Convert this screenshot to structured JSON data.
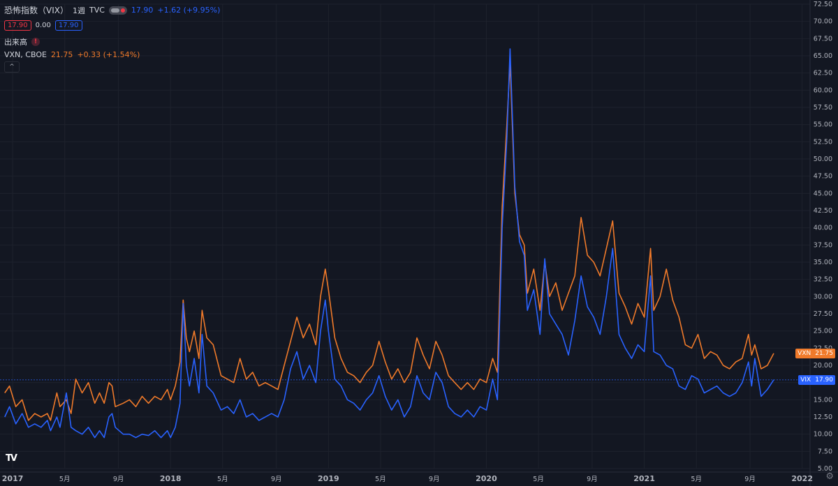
{
  "header": {
    "title": "恐怖指数（VIX）",
    "interval": "1週",
    "source": "TVC",
    "last": "17.90",
    "change": "+1.62 (+9.95%)",
    "bid": "17.90",
    "spread": "0.00",
    "ask": "17.90"
  },
  "volume_label": "出来高",
  "alert_glyph": "!",
  "collapse_glyph": "^",
  "logo": "TV",
  "gear_glyph": "⚙",
  "vxn": {
    "label": "VXN, CBOE",
    "value": "21.75",
    "change": "+0.33 (+1.54%)"
  },
  "price_tags": {
    "vxn_name": "VXN",
    "vxn_value": "21.75",
    "vix_name": "VIX",
    "vix_value": "17.90"
  },
  "colors": {
    "vix": "#2962ff",
    "vxn": "#f07a2a",
    "background": "#131722",
    "grid": "#1e222d",
    "axis_text": "#b2b5be",
    "red": "#f23645"
  },
  "chart_data": {
    "type": "line",
    "x_range": [
      2016.92,
      2022.05
    ],
    "ylim": [
      5.0,
      72.5
    ],
    "y_ticks": [
      "5.00",
      "7.50",
      "10.00",
      "12.50",
      "15.00",
      "17.50",
      "20.00",
      "22.50",
      "25.00",
      "27.50",
      "30.00",
      "32.50",
      "35.00",
      "37.50",
      "40.00",
      "42.50",
      "45.00",
      "47.50",
      "50.00",
      "52.50",
      "55.00",
      "57.50",
      "60.00",
      "62.50",
      "65.00",
      "67.50",
      "70.00",
      "72.50"
    ],
    "x_ticks": [
      {
        "label": "2017",
        "x": 2017.0
      },
      {
        "label": "5月",
        "x": 2017.33
      },
      {
        "label": "9月",
        "x": 2017.67
      },
      {
        "label": "2018",
        "x": 2018.0
      },
      {
        "label": "5月",
        "x": 2018.33
      },
      {
        "label": "9月",
        "x": 2018.67
      },
      {
        "label": "2019",
        "x": 2019.0
      },
      {
        "label": "5月",
        "x": 2019.33
      },
      {
        "label": "9月",
        "x": 2019.67
      },
      {
        "label": "2020",
        "x": 2020.0
      },
      {
        "label": "5月",
        "x": 2020.33
      },
      {
        "label": "9月",
        "x": 2020.67
      },
      {
        "label": "2021",
        "x": 2021.0
      },
      {
        "label": "5月",
        "x": 2021.33
      },
      {
        "label": "9月",
        "x": 2021.67
      },
      {
        "label": "2022",
        "x": 2022.0
      }
    ],
    "grid": true,
    "reference_line": 17.9,
    "series": [
      {
        "name": "VIX",
        "points": [
          [
            2016.95,
            12.5
          ],
          [
            2016.98,
            14.0
          ],
          [
            2017.02,
            11.5
          ],
          [
            2017.06,
            13.0
          ],
          [
            2017.1,
            11.0
          ],
          [
            2017.14,
            11.5
          ],
          [
            2017.18,
            11.0
          ],
          [
            2017.22,
            12.0
          ],
          [
            2017.24,
            10.5
          ],
          [
            2017.28,
            12.5
          ],
          [
            2017.3,
            11.0
          ],
          [
            2017.34,
            16.0
          ],
          [
            2017.37,
            11.0
          ],
          [
            2017.4,
            10.5
          ],
          [
            2017.44,
            10.0
          ],
          [
            2017.48,
            11.0
          ],
          [
            2017.52,
            9.5
          ],
          [
            2017.55,
            10.5
          ],
          [
            2017.58,
            9.5
          ],
          [
            2017.61,
            12.5
          ],
          [
            2017.63,
            13.0
          ],
          [
            2017.65,
            11.0
          ],
          [
            2017.7,
            10.0
          ],
          [
            2017.74,
            10.0
          ],
          [
            2017.78,
            9.5
          ],
          [
            2017.82,
            10.0
          ],
          [
            2017.86,
            9.8
          ],
          [
            2017.9,
            10.5
          ],
          [
            2017.94,
            9.5
          ],
          [
            2017.98,
            10.5
          ],
          [
            2018.0,
            9.5
          ],
          [
            2018.03,
            11.0
          ],
          [
            2018.06,
            14.5
          ],
          [
            2018.08,
            29.0
          ],
          [
            2018.1,
            20.0
          ],
          [
            2018.12,
            17.0
          ],
          [
            2018.15,
            21.0
          ],
          [
            2018.18,
            16.0
          ],
          [
            2018.2,
            24.5
          ],
          [
            2018.23,
            17.0
          ],
          [
            2018.27,
            16.0
          ],
          [
            2018.32,
            13.5
          ],
          [
            2018.36,
            14.0
          ],
          [
            2018.4,
            13.0
          ],
          [
            2018.44,
            15.0
          ],
          [
            2018.48,
            12.5
          ],
          [
            2018.52,
            13.0
          ],
          [
            2018.56,
            12.0
          ],
          [
            2018.6,
            12.5
          ],
          [
            2018.64,
            13.0
          ],
          [
            2018.68,
            12.5
          ],
          [
            2018.72,
            15.0
          ],
          [
            2018.76,
            19.5
          ],
          [
            2018.8,
            22.0
          ],
          [
            2018.84,
            18.0
          ],
          [
            2018.88,
            20.0
          ],
          [
            2018.92,
            17.5
          ],
          [
            2018.95,
            25.0
          ],
          [
            2018.98,
            29.5
          ],
          [
            2019.0,
            25.0
          ],
          [
            2019.04,
            18.0
          ],
          [
            2019.08,
            17.0
          ],
          [
            2019.12,
            15.0
          ],
          [
            2019.16,
            14.5
          ],
          [
            2019.2,
            13.5
          ],
          [
            2019.24,
            15.0
          ],
          [
            2019.28,
            16.0
          ],
          [
            2019.32,
            18.5
          ],
          [
            2019.36,
            15.5
          ],
          [
            2019.4,
            13.5
          ],
          [
            2019.44,
            15.0
          ],
          [
            2019.48,
            12.5
          ],
          [
            2019.52,
            14.0
          ],
          [
            2019.56,
            18.5
          ],
          [
            2019.6,
            16.0
          ],
          [
            2019.64,
            15.0
          ],
          [
            2019.68,
            19.0
          ],
          [
            2019.72,
            17.5
          ],
          [
            2019.76,
            14.0
          ],
          [
            2019.8,
            13.0
          ],
          [
            2019.84,
            12.5
          ],
          [
            2019.88,
            13.5
          ],
          [
            2019.92,
            12.5
          ],
          [
            2019.96,
            14.0
          ],
          [
            2020.0,
            13.5
          ],
          [
            2020.04,
            18.0
          ],
          [
            2020.07,
            15.0
          ],
          [
            2020.1,
            40.0
          ],
          [
            2020.13,
            53.0
          ],
          [
            2020.15,
            66.0
          ],
          [
            2020.18,
            46.0
          ],
          [
            2020.21,
            38.0
          ],
          [
            2020.24,
            36.0
          ],
          [
            2020.26,
            28.0
          ],
          [
            2020.3,
            31.0
          ],
          [
            2020.34,
            24.5
          ],
          [
            2020.37,
            35.5
          ],
          [
            2020.4,
            27.5
          ],
          [
            2020.44,
            26.0
          ],
          [
            2020.48,
            24.5
          ],
          [
            2020.52,
            21.5
          ],
          [
            2020.56,
            26.5
          ],
          [
            2020.6,
            33.0
          ],
          [
            2020.64,
            28.5
          ],
          [
            2020.68,
            27.0
          ],
          [
            2020.72,
            24.5
          ],
          [
            2020.76,
            30.0
          ],
          [
            2020.8,
            37.0
          ],
          [
            2020.84,
            24.5
          ],
          [
            2020.88,
            22.5
          ],
          [
            2020.92,
            21.0
          ],
          [
            2020.96,
            23.0
          ],
          [
            2021.0,
            22.0
          ],
          [
            2021.04,
            33.0
          ],
          [
            2021.06,
            22.0
          ],
          [
            2021.1,
            21.5
          ],
          [
            2021.14,
            20.0
          ],
          [
            2021.18,
            19.5
          ],
          [
            2021.22,
            17.0
          ],
          [
            2021.26,
            16.5
          ],
          [
            2021.3,
            18.5
          ],
          [
            2021.34,
            18.0
          ],
          [
            2021.38,
            16.0
          ],
          [
            2021.42,
            16.5
          ],
          [
            2021.46,
            17.0
          ],
          [
            2021.5,
            16.0
          ],
          [
            2021.54,
            15.5
          ],
          [
            2021.58,
            16.0
          ],
          [
            2021.62,
            17.5
          ],
          [
            2021.66,
            20.5
          ],
          [
            2021.68,
            17.0
          ],
          [
            2021.7,
            21.0
          ],
          [
            2021.74,
            15.5
          ],
          [
            2021.78,
            16.5
          ],
          [
            2021.82,
            17.9
          ]
        ]
      },
      {
        "name": "VXN",
        "points": [
          [
            2016.95,
            16.0
          ],
          [
            2016.98,
            17.0
          ],
          [
            2017.02,
            14.0
          ],
          [
            2017.06,
            15.0
          ],
          [
            2017.1,
            12.0
          ],
          [
            2017.14,
            13.0
          ],
          [
            2017.18,
            12.5
          ],
          [
            2017.22,
            13.0
          ],
          [
            2017.24,
            12.0
          ],
          [
            2017.28,
            16.0
          ],
          [
            2017.3,
            14.0
          ],
          [
            2017.34,
            15.0
          ],
          [
            2017.37,
            13.0
          ],
          [
            2017.4,
            18.0
          ],
          [
            2017.44,
            16.0
          ],
          [
            2017.48,
            17.5
          ],
          [
            2017.52,
            14.5
          ],
          [
            2017.55,
            16.0
          ],
          [
            2017.58,
            14.5
          ],
          [
            2017.61,
            17.5
          ],
          [
            2017.63,
            17.0
          ],
          [
            2017.65,
            14.0
          ],
          [
            2017.7,
            14.5
          ],
          [
            2017.74,
            15.0
          ],
          [
            2017.78,
            14.0
          ],
          [
            2017.82,
            15.5
          ],
          [
            2017.86,
            14.5
          ],
          [
            2017.9,
            15.5
          ],
          [
            2017.94,
            15.0
          ],
          [
            2017.98,
            16.5
          ],
          [
            2018.0,
            15.0
          ],
          [
            2018.03,
            17.0
          ],
          [
            2018.06,
            20.5
          ],
          [
            2018.08,
            29.5
          ],
          [
            2018.1,
            24.0
          ],
          [
            2018.12,
            22.0
          ],
          [
            2018.15,
            25.0
          ],
          [
            2018.18,
            21.0
          ],
          [
            2018.2,
            28.0
          ],
          [
            2018.23,
            24.0
          ],
          [
            2018.27,
            23.0
          ],
          [
            2018.32,
            18.5
          ],
          [
            2018.36,
            18.0
          ],
          [
            2018.4,
            17.5
          ],
          [
            2018.44,
            21.0
          ],
          [
            2018.48,
            18.0
          ],
          [
            2018.52,
            19.0
          ],
          [
            2018.56,
            17.0
          ],
          [
            2018.6,
            17.5
          ],
          [
            2018.64,
            17.0
          ],
          [
            2018.68,
            16.5
          ],
          [
            2018.72,
            20.0
          ],
          [
            2018.76,
            23.5
          ],
          [
            2018.8,
            27.0
          ],
          [
            2018.84,
            24.0
          ],
          [
            2018.88,
            26.0
          ],
          [
            2018.92,
            23.0
          ],
          [
            2018.95,
            30.0
          ],
          [
            2018.98,
            34.0
          ],
          [
            2019.0,
            31.0
          ],
          [
            2019.04,
            24.0
          ],
          [
            2019.08,
            21.0
          ],
          [
            2019.12,
            19.0
          ],
          [
            2019.16,
            18.5
          ],
          [
            2019.2,
            17.5
          ],
          [
            2019.24,
            19.0
          ],
          [
            2019.28,
            20.0
          ],
          [
            2019.32,
            23.5
          ],
          [
            2019.36,
            20.5
          ],
          [
            2019.4,
            18.0
          ],
          [
            2019.44,
            19.5
          ],
          [
            2019.48,
            17.5
          ],
          [
            2019.52,
            19.0
          ],
          [
            2019.56,
            24.0
          ],
          [
            2019.6,
            21.5
          ],
          [
            2019.64,
            19.5
          ],
          [
            2019.68,
            23.5
          ],
          [
            2019.72,
            21.5
          ],
          [
            2019.76,
            18.5
          ],
          [
            2019.8,
            17.5
          ],
          [
            2019.84,
            16.5
          ],
          [
            2019.88,
            17.5
          ],
          [
            2019.92,
            16.5
          ],
          [
            2019.96,
            18.0
          ],
          [
            2020.0,
            17.5
          ],
          [
            2020.04,
            21.0
          ],
          [
            2020.07,
            19.0
          ],
          [
            2020.1,
            43.0
          ],
          [
            2020.13,
            55.0
          ],
          [
            2020.15,
            64.0
          ],
          [
            2020.18,
            45.0
          ],
          [
            2020.21,
            39.0
          ],
          [
            2020.24,
            37.5
          ],
          [
            2020.26,
            30.5
          ],
          [
            2020.3,
            34.0
          ],
          [
            2020.34,
            28.0
          ],
          [
            2020.37,
            35.0
          ],
          [
            2020.4,
            30.0
          ],
          [
            2020.44,
            32.0
          ],
          [
            2020.48,
            28.0
          ],
          [
            2020.52,
            30.5
          ],
          [
            2020.56,
            33.0
          ],
          [
            2020.6,
            41.5
          ],
          [
            2020.64,
            36.0
          ],
          [
            2020.68,
            35.0
          ],
          [
            2020.72,
            33.0
          ],
          [
            2020.76,
            37.0
          ],
          [
            2020.8,
            41.0
          ],
          [
            2020.84,
            30.5
          ],
          [
            2020.88,
            28.5
          ],
          [
            2020.92,
            26.0
          ],
          [
            2020.96,
            29.0
          ],
          [
            2021.0,
            27.0
          ],
          [
            2021.04,
            37.0
          ],
          [
            2021.06,
            28.0
          ],
          [
            2021.1,
            30.0
          ],
          [
            2021.14,
            34.0
          ],
          [
            2021.18,
            29.5
          ],
          [
            2021.22,
            27.0
          ],
          [
            2021.26,
            23.0
          ],
          [
            2021.3,
            22.5
          ],
          [
            2021.34,
            24.5
          ],
          [
            2021.38,
            21.0
          ],
          [
            2021.42,
            22.0
          ],
          [
            2021.46,
            21.5
          ],
          [
            2021.5,
            20.0
          ],
          [
            2021.54,
            19.5
          ],
          [
            2021.58,
            20.5
          ],
          [
            2021.62,
            21.0
          ],
          [
            2021.66,
            24.5
          ],
          [
            2021.68,
            21.5
          ],
          [
            2021.7,
            23.0
          ],
          [
            2021.74,
            19.5
          ],
          [
            2021.78,
            20.0
          ],
          [
            2021.82,
            21.75
          ]
        ]
      }
    ]
  }
}
